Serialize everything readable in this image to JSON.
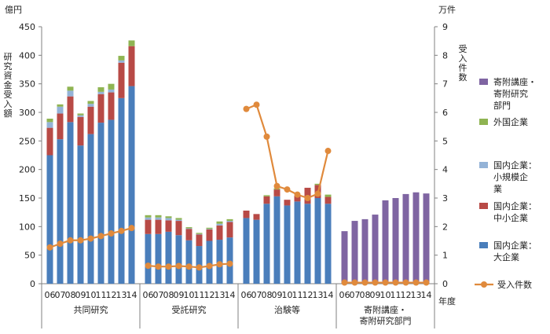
{
  "chart_data": {
    "type": "bar",
    "stacked": true,
    "y_left": {
      "unit": "億円",
      "label": "研究資金受入額",
      "ylim": [
        0,
        450
      ],
      "ticks": [
        0,
        50,
        100,
        150,
        200,
        250,
        300,
        350,
        400,
        450
      ]
    },
    "y_right": {
      "unit": "万件",
      "label": "受入件数",
      "ylim": [
        0,
        9
      ],
      "ticks": [
        0,
        1,
        2,
        3,
        4,
        5,
        6,
        7,
        8,
        9
      ]
    },
    "x_unit": "年度",
    "groups": [
      {
        "name": "共同研究",
        "years": [
          "06",
          "07",
          "08",
          "09",
          "10",
          "11",
          "12",
          "13",
          "14"
        ],
        "series": {
          "large": [
            225,
            253,
            283,
            242,
            262,
            282,
            287,
            325,
            346
          ],
          "sme": [
            48,
            45,
            45,
            50,
            48,
            50,
            48,
            62,
            70
          ],
          "small": [
            10,
            12,
            10,
            3,
            5,
            4,
            5,
            4,
            0
          ],
          "foreign": [
            6,
            4,
            7,
            3,
            5,
            8,
            10,
            8,
            10
          ],
          "endowed": [
            0,
            0,
            0,
            0,
            0,
            0,
            0,
            0,
            0
          ]
        },
        "count": [
          1.27,
          1.4,
          1.52,
          1.52,
          1.58,
          1.67,
          1.76,
          1.85,
          1.95
        ]
      },
      {
        "name": "受託研究",
        "years": [
          "06",
          "07",
          "08",
          "09",
          "10",
          "11",
          "12",
          "13",
          "14"
        ],
        "series": {
          "large": [
            87,
            87,
            91,
            85,
            76,
            66,
            75,
            77,
            81
          ],
          "sme": [
            25,
            25,
            20,
            25,
            20,
            20,
            20,
            25,
            27
          ],
          "small": [
            4,
            4,
            4,
            2,
            1,
            1,
            1,
            3,
            2
          ],
          "foreign": [
            4,
            4,
            3,
            3,
            2,
            2,
            2,
            4,
            3
          ],
          "endowed": [
            0,
            0,
            0,
            0,
            0,
            0,
            0,
            0,
            0
          ]
        },
        "count": [
          0.63,
          0.6,
          0.6,
          0.62,
          0.6,
          0.57,
          0.62,
          0.68,
          0.7
        ]
      },
      {
        "name": "治験等",
        "years": [
          "06",
          "07",
          "08",
          "09",
          "10",
          "11",
          "12",
          "13",
          "14"
        ],
        "series": {
          "large": [
            115,
            112,
            140,
            153,
            137,
            144,
            140,
            150,
            140
          ],
          "sme": [
            13,
            10,
            13,
            12,
            10,
            10,
            28,
            23,
            12
          ],
          "small": [
            0,
            0,
            0,
            0,
            0,
            0,
            0,
            0,
            0
          ],
          "foreign": [
            0,
            0,
            2,
            2,
            0,
            0,
            0,
            2,
            4
          ],
          "endowed": [
            0,
            0,
            0,
            0,
            0,
            0,
            0,
            0,
            0
          ]
        },
        "count": [
          6.12,
          6.27,
          5.15,
          3.42,
          3.3,
          3.12,
          3.0,
          3.15,
          4.65
        ]
      },
      {
        "name": "寄附講座・\n寄附研究部門",
        "years": [
          "06",
          "07",
          "08",
          "09",
          "10",
          "11",
          "12",
          "13",
          "14"
        ],
        "series": {
          "large": [
            0,
            0,
            0,
            0,
            0,
            0,
            0,
            0,
            0
          ],
          "sme": [
            0,
            0,
            0,
            0,
            0,
            0,
            0,
            0,
            0
          ],
          "small": [
            0,
            0,
            0,
            0,
            0,
            0,
            0,
            0,
            0
          ],
          "foreign": [
            0,
            0,
            0,
            0,
            0,
            0,
            0,
            0,
            0
          ],
          "endowed": [
            92,
            110,
            113,
            121,
            146,
            150,
            157,
            160,
            158
          ]
        },
        "count": [
          0.04,
          0.04,
          0.04,
          0.04,
          0.04,
          0.04,
          0.04,
          0.04,
          0.04
        ]
      }
    ],
    "legend": [
      {
        "key": "endowed",
        "label": "寄附講座・\n寄附研究\n部門",
        "color": "#7f65a2"
      },
      {
        "key": "foreign",
        "label": "外国企業",
        "color": "#8fb452"
      },
      {
        "key": "small",
        "label": "国内企業：\n小規模企\n業",
        "color": "#94b3d7"
      },
      {
        "key": "sme",
        "label": "国内企業：\n中小企業",
        "color": "#b84a46"
      },
      {
        "key": "large",
        "label": "国内企業：\n大企業",
        "color": "#4a7ebb"
      },
      {
        "key": "count",
        "label": "受入件数",
        "color": "#e08a3c",
        "kind": "line"
      }
    ],
    "stack_order": [
      "large",
      "sme",
      "small",
      "foreign",
      "endowed"
    ],
    "grid": false
  }
}
